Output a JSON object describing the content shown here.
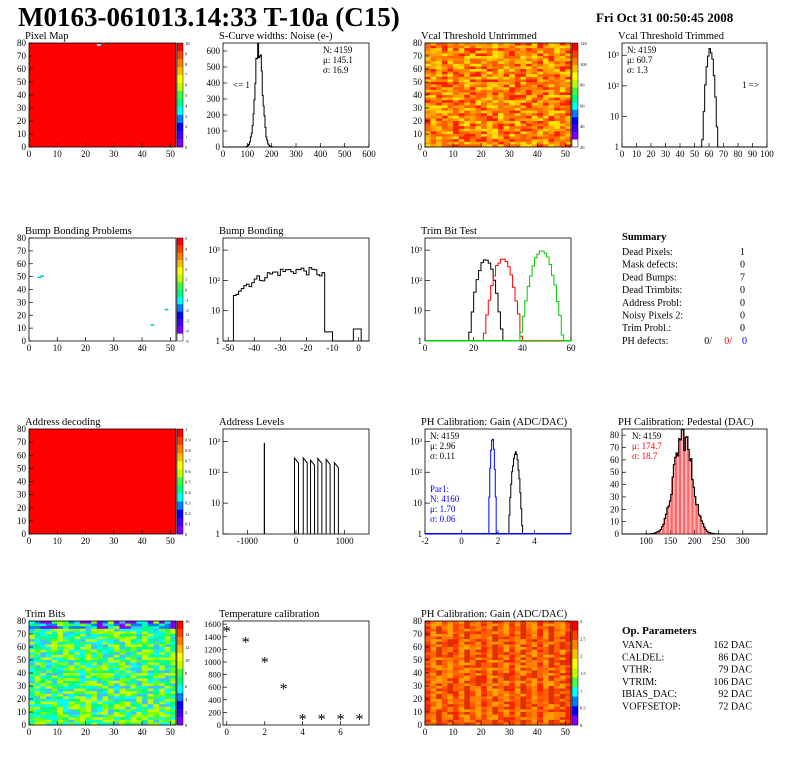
{
  "header": {
    "title": "M0163-061013.14:33 T-10a (C15)",
    "timestamp": "Fri Oct 31 00:50:45 2008"
  },
  "colors": {
    "red": "#ff0000",
    "blue": "#0000ff",
    "green": "#00cc00",
    "black": "#000000"
  },
  "chart_data": [
    {
      "id": "pixel_map",
      "type": "heatmap",
      "title": "Pixel Map",
      "xlim": [
        0,
        52
      ],
      "ylim": [
        0,
        80
      ],
      "xticks": [
        "0",
        "10",
        "20",
        "30",
        "40",
        "50"
      ],
      "yticks": [
        "0",
        "10",
        "20",
        "30",
        "40",
        "50",
        "60",
        "70",
        "80"
      ],
      "pattern": "uniform",
      "dominant_color": "#ff0000",
      "palette_ticks": [
        "10",
        "9",
        "8",
        "7",
        "6",
        "5",
        "4",
        "3",
        "2",
        "1",
        "0"
      ]
    },
    {
      "id": "scurve_noise",
      "type": "histogram",
      "title": "S-Curve widths: Noise (e-)",
      "xlim": [
        0,
        600
      ],
      "ylim": [
        0,
        650
      ],
      "xticks": [
        "0",
        "100",
        "200",
        "300",
        "400",
        "500",
        "600"
      ],
      "yticks": [
        "0",
        "100",
        "200",
        "300",
        "400",
        "500",
        "600"
      ],
      "stats": [
        "N: 4159",
        "μ: 145.1",
        "σ: 16.9"
      ],
      "annotation": "<= 1",
      "series": [
        {
          "color": "#000000",
          "peak_x": 147,
          "peak_y": 610,
          "sigma": 15
        }
      ]
    },
    {
      "id": "vcal_untrimmed",
      "type": "heatmap",
      "title": "Vcal Threshold Untrimmed",
      "xlim": [
        0,
        52
      ],
      "ylim": [
        0,
        80
      ],
      "xticks": [
        "0",
        "10",
        "20",
        "30",
        "40",
        "50"
      ],
      "yticks": [
        "0",
        "10",
        "20",
        "30",
        "40",
        "50",
        "60",
        "70",
        "80"
      ],
      "pattern": "noisy",
      "palette_ticks": [
        "120",
        "100",
        "80",
        "60",
        "40",
        "20"
      ]
    },
    {
      "id": "vcal_trimmed",
      "type": "histogram",
      "title": "Vcal Threshold Trimmed",
      "log_scale_y": true,
      "xlim": [
        0,
        100
      ],
      "xticks": [
        "0",
        "10",
        "20",
        "30",
        "40",
        "50",
        "60",
        "70",
        "80",
        "90",
        "100"
      ],
      "yticks": [
        "1",
        "10",
        "10^2",
        "10^3"
      ],
      "stats": [
        "N: 4159",
        "μ: 60.7",
        "σ:  1.3"
      ],
      "annotation": "1 =>",
      "series": [
        {
          "color": "#000000",
          "peak_x": 60.7,
          "peak_y": 1500,
          "sigma": 1.4
        }
      ]
    },
    {
      "id": "bump_map",
      "type": "heatmap",
      "title": "Bump Bonding Problems",
      "xlim": [
        0,
        52
      ],
      "ylim": [
        0,
        80
      ],
      "xticks": [
        "0",
        "10",
        "20",
        "30",
        "40",
        "50"
      ],
      "yticks": [
        "0",
        "10",
        "20",
        "30",
        "40",
        "50",
        "60",
        "70",
        "80"
      ],
      "pattern": "sparse",
      "palette_ticks": [
        "5",
        "4",
        "3",
        "2",
        "1",
        "0",
        "-1",
        "-2",
        "-3",
        "-4",
        "-5"
      ]
    },
    {
      "id": "bump_bonding",
      "type": "histogram",
      "title": "Bump Bonding",
      "log_scale_y": true,
      "xlim": [
        -52,
        4
      ],
      "xticks": [
        "-50",
        "-40",
        "-30",
        "-20",
        "-10",
        "0"
      ],
      "yticks": [
        "1",
        "10",
        "10^2",
        "10^3"
      ],
      "series": [
        {
          "color": "#000000"
        }
      ]
    },
    {
      "id": "trim_bit_test",
      "type": "histogram",
      "title": "Trim Bit Test",
      "log_scale_y": true,
      "xlim": [
        0,
        60
      ],
      "xticks": [
        "0",
        "20",
        "40",
        "60"
      ],
      "yticks": [
        "1",
        "10",
        "10^2",
        "10^3"
      ],
      "series": [
        {
          "color": "#000000",
          "peak_x": 25,
          "peak_y": 450,
          "sigma": 2.0
        },
        {
          "color": "#ff0000",
          "peak_x": 32,
          "peak_y": 550,
          "sigma": 2.2
        },
        {
          "color": "#00cc00",
          "peak_x": 48,
          "peak_y": 900,
          "sigma": 2.4
        }
      ]
    },
    {
      "id": "summary",
      "type": "table",
      "title": "Summary",
      "rows": [
        {
          "label": "Dead Pixels:",
          "value": "1"
        },
        {
          "label": "Mask defects:",
          "value": "0"
        },
        {
          "label": "Dead Bumps:",
          "value": "7"
        },
        {
          "label": "Dead Trimbits:",
          "value": "0"
        },
        {
          "label": "Address Probl:",
          "value": "0"
        },
        {
          "label": "Noisy Pixels 2:",
          "value": "0"
        },
        {
          "label": "Trim Probl.:",
          "value": "0"
        }
      ],
      "ph_defects": {
        "label": "PH defects:",
        "values": [
          "0/",
          "0/",
          "0"
        ]
      }
    },
    {
      "id": "address_map",
      "type": "heatmap",
      "title": "Address decoding",
      "xlim": [
        0,
        52
      ],
      "ylim": [
        0,
        80
      ],
      "xticks": [
        "0",
        "10",
        "20",
        "30",
        "40",
        "50"
      ],
      "yticks": [
        "0",
        "10",
        "20",
        "30",
        "40",
        "50",
        "60",
        "70",
        "80"
      ],
      "pattern": "uniform",
      "dominant_color": "#ff0000",
      "palette_ticks": [
        "1",
        "0.9",
        "0.8",
        "0.7",
        "0.6",
        "0.5",
        "0.4",
        "0.3",
        "0.2",
        "0.1",
        "0"
      ]
    },
    {
      "id": "address_levels",
      "type": "histogram",
      "title": "Address Levels",
      "log_scale_y": true,
      "xlim": [
        -1500,
        1500
      ],
      "xticks": [
        "-1000",
        "0",
        "1000"
      ],
      "yticks": [
        "1",
        "10",
        "10^2",
        "10^3"
      ],
      "spikes": [
        -650,
        10,
        190,
        340,
        490,
        660,
        830
      ]
    },
    {
      "id": "ph_gain",
      "type": "histogram",
      "title": "PH Calibration: Gain (ADC/DAC)",
      "log_scale_y": true,
      "xlim": [
        -2,
        6
      ],
      "xticks": [
        "-2",
        "0",
        "2",
        "4"
      ],
      "yticks": [
        "1",
        "10",
        "10^2",
        "10^3"
      ],
      "stats": [
        "N: 4159",
        "μ: 2.96",
        "σ: 0.11"
      ],
      "stats2": [
        "Par1:",
        "N: 4160",
        "μ: 1.70",
        "σ: 0.06"
      ],
      "series": [
        {
          "color": "#000000",
          "peak_x": 2.96,
          "peak_y": 400,
          "sigma": 0.11
        },
        {
          "color": "#0000ff",
          "peak_x": 1.7,
          "peak_y": 1200,
          "sigma": 0.06
        }
      ]
    },
    {
      "id": "ph_pedestal",
      "type": "histogram",
      "title": "PH Calibration: Pedestal (DAC)",
      "xlim": [
        50,
        350
      ],
      "ylim": [
        0,
        85
      ],
      "xticks": [
        "100",
        "150",
        "200",
        "250",
        "300"
      ],
      "yticks": [
        "0",
        "10",
        "20",
        "30",
        "40",
        "50",
        "60",
        "70",
        "80"
      ],
      "stats": [
        "N: 4159",
        "μ: 174.7",
        "σ: 18.7"
      ],
      "series": [
        {
          "color": "#000000",
          "peak_x": 175,
          "peak_y": 80,
          "sigma": 19
        }
      ]
    },
    {
      "id": "trim_bits",
      "type": "heatmap",
      "title": "Trim Bits",
      "xlim": [
        0,
        52
      ],
      "ylim": [
        0,
        80
      ],
      "xticks": [
        "0",
        "10",
        "20",
        "30",
        "40",
        "50"
      ],
      "yticks": [
        "0",
        "10",
        "20",
        "30",
        "40",
        "50",
        "60",
        "70",
        "80"
      ],
      "pattern": "trim",
      "palette_ticks": [
        "16",
        "14",
        "12",
        "10",
        "8",
        "6",
        "4",
        "2",
        "0"
      ]
    },
    {
      "id": "temp_calibration",
      "type": "scatter",
      "title": "Temperature calibration",
      "xlim": [
        -0.2,
        7.5
      ],
      "ylim": [
        0,
        1650
      ],
      "xticks": [
        "0",
        "2",
        "4",
        "6"
      ],
      "yticks": [
        "0",
        "200",
        "400",
        "600",
        "800",
        "1000",
        "1200",
        "1400",
        "1600"
      ],
      "x": [
        0,
        1,
        2,
        3,
        4,
        5,
        6,
        7
      ],
      "y": [
        1480,
        1310,
        990,
        570,
        90,
        90,
        90,
        90
      ]
    },
    {
      "id": "ph_gain_map",
      "type": "heatmap",
      "title": "PH Calibration: Gain (ADC/DAC)",
      "xlim": [
        0,
        52
      ],
      "ylim": [
        0,
        80
      ],
      "xticks": [
        "0",
        "10",
        "20",
        "30",
        "40",
        "50"
      ],
      "yticks": [
        "0",
        "10",
        "20",
        "30",
        "40",
        "50",
        "60",
        "70",
        "80"
      ],
      "pattern": "gain",
      "palette_ticks": [
        "3",
        "2.5",
        "2",
        "1.5",
        "1",
        "0.5",
        "0"
      ]
    },
    {
      "id": "op_parameters",
      "type": "table",
      "title": "Op. Parameters",
      "rows": [
        {
          "label": "VANA:",
          "value": "162 DAC"
        },
        {
          "label": "CALDEL:",
          "value": "86 DAC"
        },
        {
          "label": "VTHR:",
          "value": "79 DAC"
        },
        {
          "label": "VTRIM:",
          "value": "106 DAC"
        },
        {
          "label": "IBIAS_DAC:",
          "value": "92 DAC"
        },
        {
          "label": "VOFFSETOP:",
          "value": "72 DAC"
        }
      ]
    }
  ]
}
